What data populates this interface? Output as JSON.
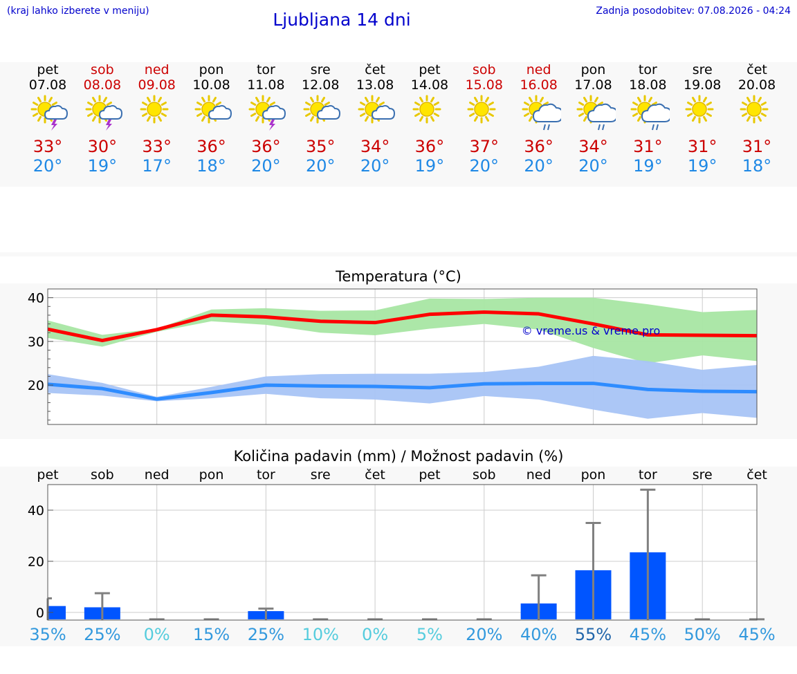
{
  "header": {
    "location_hint": "(kraj lahko izberete v meniju)",
    "title": "Ljubljana 14 dni",
    "updated": "Zadnja posodobitev: 07.08.2026 - 04:24"
  },
  "days": [
    {
      "name": "pet",
      "date": "07.08",
      "weekend": false,
      "icon": "sun-cloud-lightning-icon",
      "tmax": "33°",
      "tmin": "20°"
    },
    {
      "name": "sob",
      "date": "08.08",
      "weekend": true,
      "icon": "sun-cloud-lightning-icon",
      "tmax": "30°",
      "tmin": "19°"
    },
    {
      "name": "ned",
      "date": "09.08",
      "weekend": true,
      "icon": "sun-icon",
      "tmax": "33°",
      "tmin": "17°"
    },
    {
      "name": "pon",
      "date": "10.08",
      "weekend": false,
      "icon": "sun-cloud-icon",
      "tmax": "36°",
      "tmin": "18°"
    },
    {
      "name": "tor",
      "date": "11.08",
      "weekend": false,
      "icon": "sun-cloud-lightning-icon",
      "tmax": "36°",
      "tmin": "20°"
    },
    {
      "name": "sre",
      "date": "12.08",
      "weekend": false,
      "icon": "sun-cloud-icon",
      "tmax": "35°",
      "tmin": "20°"
    },
    {
      "name": "čet",
      "date": "13.08",
      "weekend": false,
      "icon": "sun-cloud-icon",
      "tmax": "34°",
      "tmin": "20°"
    },
    {
      "name": "pet",
      "date": "14.08",
      "weekend": false,
      "icon": "sun-icon",
      "tmax": "36°",
      "tmin": "19°"
    },
    {
      "name": "sob",
      "date": "15.08",
      "weekend": true,
      "icon": "sun-icon",
      "tmax": "37°",
      "tmin": "20°"
    },
    {
      "name": "ned",
      "date": "16.08",
      "weekend": true,
      "icon": "sun-cloud-rain-icon",
      "tmax": "36°",
      "tmin": "20°"
    },
    {
      "name": "pon",
      "date": "17.08",
      "weekend": false,
      "icon": "sun-cloud-rain-icon",
      "tmax": "34°",
      "tmin": "20°"
    },
    {
      "name": "tor",
      "date": "18.08",
      "weekend": false,
      "icon": "sun-cloud-rain-icon",
      "tmax": "31°",
      "tmin": "19°"
    },
    {
      "name": "sre",
      "date": "19.08",
      "weekend": false,
      "icon": "sun-icon",
      "tmax": "31°",
      "tmin": "19°"
    },
    {
      "name": "čet",
      "date": "20.08",
      "weekend": false,
      "icon": "sun-icon",
      "tmax": "31°",
      "tmin": "18°"
    }
  ],
  "colors": {
    "title_blue": "#0000cc",
    "weekend_red": "#cc0000",
    "max_line": "#ff0000",
    "max_band": "#a8e6a3",
    "min_line": "#2e8cff",
    "min_band": "#a8c4f5",
    "precip_bar": "#0055ff",
    "whisker": "#808080"
  },
  "chart_data": [
    {
      "type": "line",
      "title": "Temperatura (°C)",
      "categories": [
        "pet",
        "sob",
        "ned",
        "pon",
        "tor",
        "sre",
        "čet",
        "pet",
        "sob",
        "ned",
        "pon",
        "tor",
        "sre",
        "čet"
      ],
      "ylim": [
        11,
        42
      ],
      "yticks": [
        20,
        30,
        40
      ],
      "watermark": "© vreme.us & vreme.pro",
      "series": [
        {
          "role": "max",
          "values": [
            32.8,
            30.2,
            32.7,
            36.0,
            35.6,
            34.6,
            34.3,
            36.2,
            36.7,
            36.3,
            34.0,
            31.5,
            31.4,
            31.3
          ],
          "band_low": [
            30.8,
            28.8,
            32.2,
            34.6,
            33.8,
            32.0,
            31.4,
            32.9,
            34.0,
            32.7,
            28.5,
            25.0,
            26.8,
            25.5
          ],
          "band_high": [
            34.8,
            31.5,
            32.9,
            37.3,
            37.6,
            37.0,
            37.1,
            39.8,
            39.7,
            40.0,
            40.0,
            38.5,
            36.7,
            37.2
          ]
        },
        {
          "role": "min",
          "values": [
            20.2,
            19.2,
            16.8,
            18.3,
            20.0,
            19.8,
            19.7,
            19.4,
            20.3,
            20.4,
            20.4,
            19.0,
            18.6,
            18.5
          ],
          "band_low": [
            18.2,
            17.6,
            16.3,
            17.0,
            18.0,
            17.0,
            16.7,
            15.8,
            17.5,
            16.7,
            14.4,
            12.3,
            13.6,
            12.5
          ],
          "band_high": [
            22.5,
            20.5,
            17.3,
            19.6,
            22.0,
            22.5,
            22.6,
            22.6,
            23.0,
            24.2,
            26.7,
            25.5,
            23.5,
            24.6
          ]
        }
      ]
    },
    {
      "type": "bar",
      "title": "Količina padavin (mm) / Možnost padavin (%)",
      "categories": [
        "pet",
        "sob",
        "ned",
        "pon",
        "tor",
        "sre",
        "čet",
        "pet",
        "sob",
        "ned",
        "pon",
        "tor",
        "sre",
        "čet"
      ],
      "ylim": [
        -3,
        50
      ],
      "yticks": [
        0,
        20,
        40
      ],
      "values": [
        2.5,
        2.0,
        0,
        0,
        0.5,
        0,
        0,
        0,
        0,
        3.5,
        16.5,
        23.5,
        0,
        0
      ],
      "error_high": [
        5.5,
        7.5,
        0,
        0,
        1.5,
        0,
        0,
        0,
        0,
        14.5,
        35,
        48,
        0,
        0
      ],
      "probability": [
        "35%",
        "25%",
        "0%",
        "15%",
        "25%",
        "10%",
        "0%",
        "5%",
        "20%",
        "40%",
        "55%",
        "45%",
        "50%",
        "45%"
      ],
      "probability_colors": [
        "#3399dd",
        "#3399dd",
        "#55ccdd",
        "#3399dd",
        "#3399dd",
        "#55ccdd",
        "#55ccdd",
        "#55ccdd",
        "#3399dd",
        "#3399dd",
        "#2266aa",
        "#3399dd",
        "#3399dd",
        "#3399dd"
      ]
    }
  ]
}
